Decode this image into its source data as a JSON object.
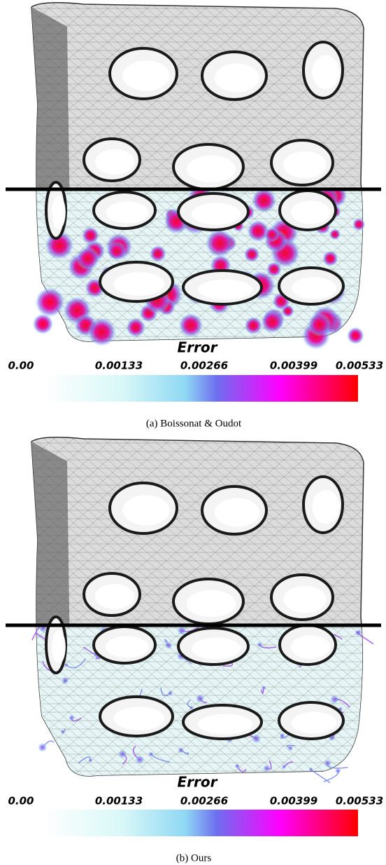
{
  "panels": [
    {
      "colorbar": {
        "title": "Error",
        "ticks": [
          "0.00",
          "0.00133",
          "0.00266",
          "0.00399",
          "0.00533"
        ]
      },
      "caption": "(a) Boissonat & Oudot"
    },
    {
      "colorbar": {
        "title": "Error",
        "ticks": [
          "0.00",
          "0.00133",
          "0.00266",
          "0.00399",
          "0.00533"
        ]
      },
      "caption": "(b) Ours"
    }
  ]
}
